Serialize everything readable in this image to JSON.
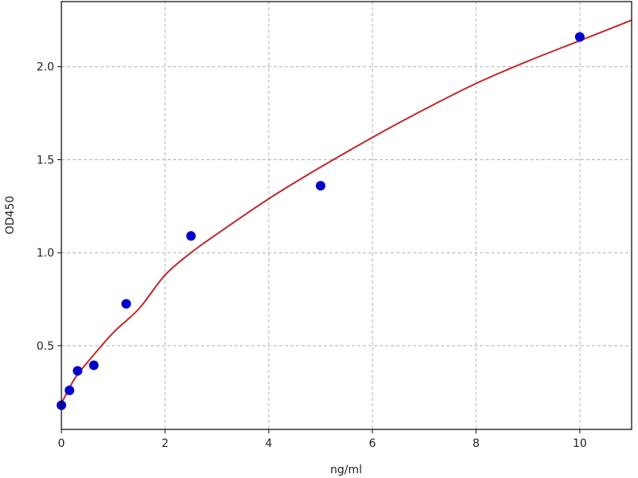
{
  "chart_data": {
    "type": "scatter",
    "title": "",
    "xlabel": "ng/ml",
    "ylabel": "OD450",
    "xlim": [
      0,
      11
    ],
    "ylim": [
      0.05,
      2.35
    ],
    "xticks": [
      0,
      2,
      4,
      6,
      8,
      10
    ],
    "yticks": [
      0.5,
      1.0,
      1.5,
      2.0
    ],
    "xtick_labels": [
      "0",
      "2",
      "4",
      "6",
      "8",
      "10"
    ],
    "ytick_labels": [
      "0.5",
      "1.0",
      "1.5",
      "2.0"
    ],
    "grid": true,
    "points": {
      "x": [
        0,
        0.156,
        0.3125,
        0.625,
        1.25,
        2.5,
        5,
        10
      ],
      "y": [
        0.18,
        0.26,
        0.365,
        0.395,
        0.725,
        1.09,
        1.36,
        2.16
      ],
      "color": "#0000cc"
    },
    "fit_curve": {
      "x": [
        0,
        0.25,
        0.5,
        1,
        1.5,
        2,
        2.5,
        3,
        4,
        5,
        6,
        7,
        8,
        9,
        10,
        11
      ],
      "y": [
        0.19,
        0.32,
        0.41,
        0.57,
        0.7,
        0.88,
        1.0,
        1.1,
        1.29,
        1.46,
        1.62,
        1.77,
        1.91,
        2.03,
        2.14,
        2.25
      ],
      "color": "#c0282a"
    }
  }
}
